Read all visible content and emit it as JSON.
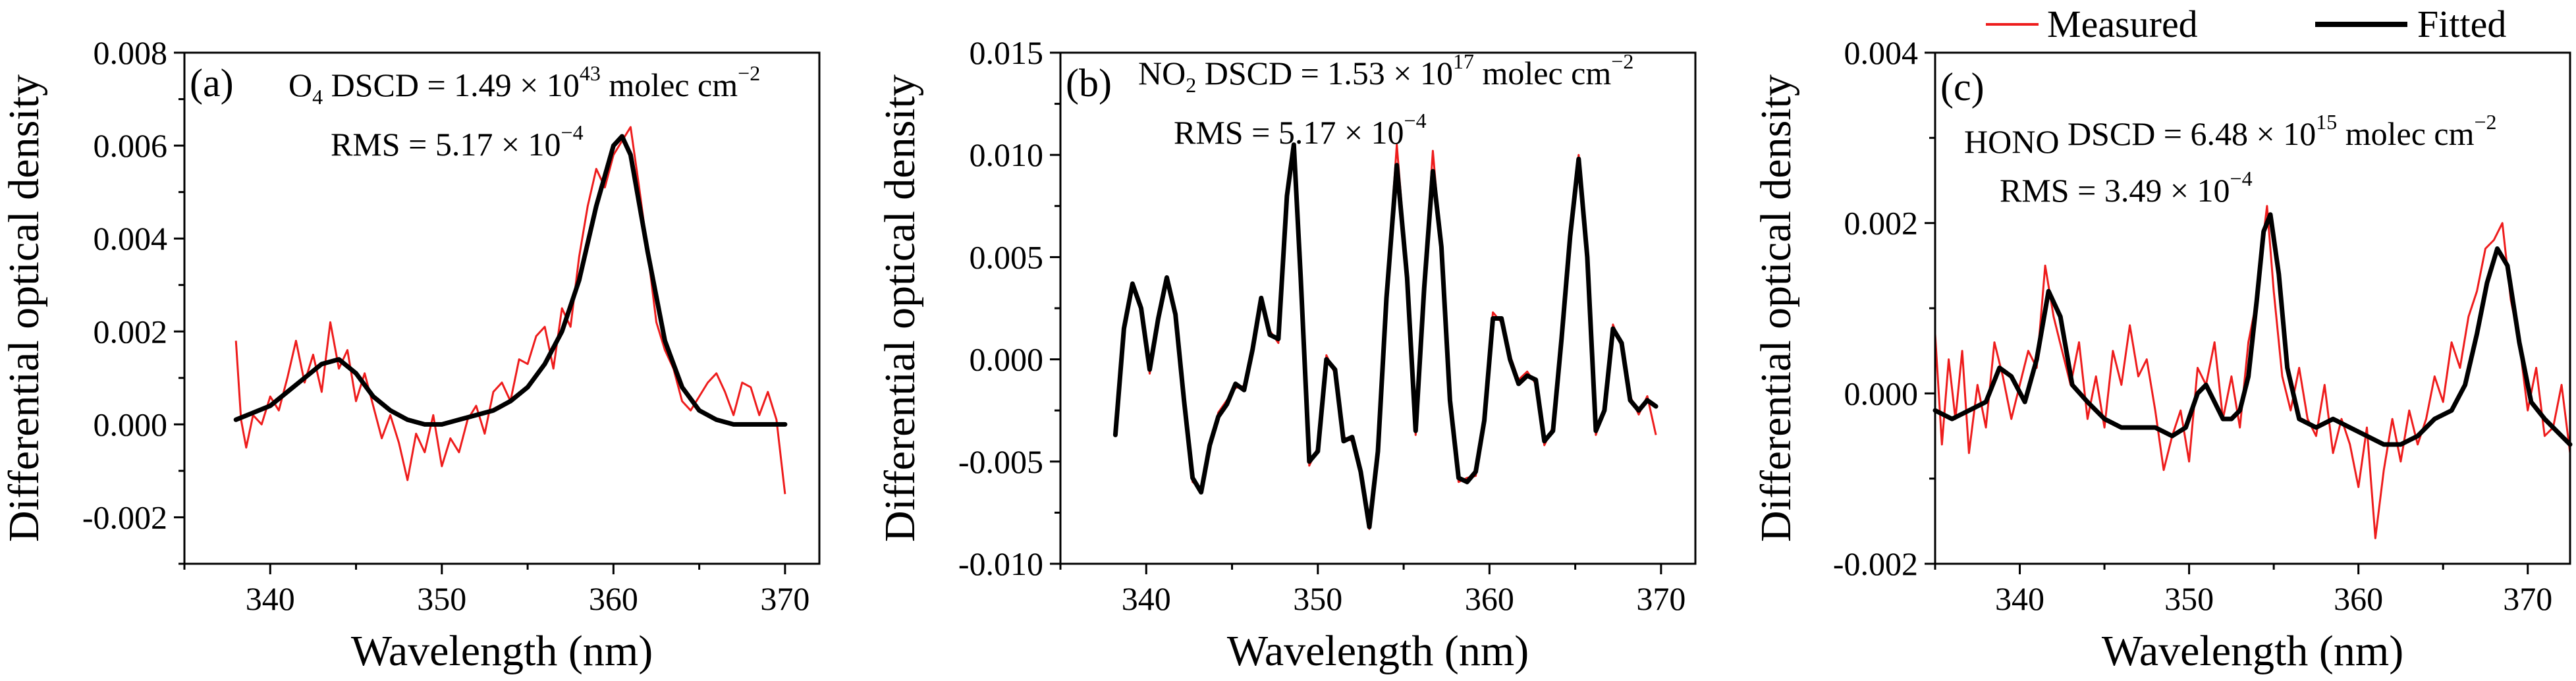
{
  "legend": {
    "measured": "Measured",
    "fitted": "Fitted"
  },
  "chart_data": [
    {
      "type": "line",
      "panel_label": "(a)",
      "xlabel": "Wavelength (nm)",
      "ylabel": "Differential optical density",
      "xlim": [
        335,
        372
      ],
      "ylim": [
        -0.003,
        0.008
      ],
      "xticks": [
        340,
        350,
        360,
        370
      ],
      "yticks": [
        -0.002,
        0.0,
        0.002,
        0.004,
        0.006,
        0.008
      ],
      "ytick_labels": [
        "-0.002",
        "0.000",
        "0.002",
        "0.004",
        "0.006",
        "0.008"
      ],
      "annotation": {
        "dscd_species": "O",
        "dscd_sub": "4",
        "dscd_text": " DSCD = 1.49 × 10",
        "dscd_exp": "43",
        "dscd_unit": " molec cm",
        "dscd_unit_exp": "−2",
        "rms_text": "RMS = 5.17 × 10",
        "rms_exp": "−4"
      },
      "fitted": {
        "name": "Fitted",
        "x": [
          338,
          340,
          341,
          342,
          343,
          344,
          345,
          346,
          347,
          348,
          349,
          350,
          351,
          352,
          353,
          354,
          355,
          356,
          357,
          358,
          359,
          360,
          360.5,
          361,
          362,
          363,
          364,
          365,
          366,
          367,
          368,
          369,
          370
        ],
        "y": [
          0.0001,
          0.0004,
          0.0007,
          0.001,
          0.0013,
          0.0014,
          0.0011,
          0.0006,
          0.0003,
          0.0001,
          0.0,
          0.0,
          0.0001,
          0.0002,
          0.0003,
          0.0005,
          0.0008,
          0.0013,
          0.002,
          0.0031,
          0.0047,
          0.006,
          0.0062,
          0.0058,
          0.0037,
          0.0018,
          0.0008,
          0.0003,
          0.0001,
          0.0,
          0.0,
          0.0,
          0.0
        ]
      },
      "measured": {
        "name": "Measured",
        "x": [
          338,
          338.3,
          338.6,
          339,
          339.5,
          340,
          340.5,
          341,
          341.5,
          342,
          342.5,
          343,
          343.5,
          344,
          344.5,
          345,
          345.5,
          346,
          346.5,
          347,
          347.5,
          348,
          348.5,
          349,
          349.5,
          350,
          350.5,
          351,
          351.5,
          352,
          352.5,
          353,
          353.5,
          354,
          354.5,
          355,
          355.5,
          356,
          356.5,
          357,
          357.5,
          358,
          358.5,
          359,
          359.5,
          360,
          360.5,
          361,
          361.5,
          362,
          362.5,
          363,
          363.5,
          364,
          364.5,
          365,
          365.5,
          366,
          366.5,
          367,
          367.5,
          368,
          368.5,
          369,
          369.5,
          370
        ],
        "y": [
          0.0018,
          0.0001,
          -0.0005,
          0.0002,
          0.0,
          0.0006,
          0.0003,
          0.001,
          0.0018,
          0.0009,
          0.0015,
          0.0007,
          0.0022,
          0.0012,
          0.0016,
          0.0005,
          0.0011,
          0.0004,
          -0.0003,
          0.0002,
          -0.0004,
          -0.0012,
          -0.0002,
          -0.0006,
          0.0002,
          -0.0009,
          -0.0003,
          -0.0006,
          0.0001,
          0.0004,
          -0.0002,
          0.0007,
          0.0009,
          0.0005,
          0.0014,
          0.0013,
          0.0019,
          0.0021,
          0.0012,
          0.0025,
          0.0021,
          0.0036,
          0.0047,
          0.0055,
          0.0051,
          0.0058,
          0.0061,
          0.0064,
          0.0051,
          0.0037,
          0.0022,
          0.0016,
          0.0012,
          0.0005,
          0.0003,
          0.0006,
          0.0009,
          0.0011,
          0.0007,
          0.0002,
          0.0009,
          0.0008,
          0.0002,
          0.0007,
          0.0001,
          -0.0015
        ]
      }
    },
    {
      "type": "line",
      "panel_label": "(b)",
      "xlabel": "Wavelength (nm)",
      "ylabel": "Differential optical density",
      "xlim": [
        335,
        372
      ],
      "ylim": [
        -0.01,
        0.015
      ],
      "xticks": [
        340,
        350,
        360,
        370
      ],
      "yticks": [
        -0.01,
        -0.005,
        0.0,
        0.005,
        0.01,
        0.015
      ],
      "ytick_labels": [
        "-0.010",
        "-0.005",
        "0.000",
        "0.005",
        "0.010",
        "0.015"
      ],
      "annotation": {
        "dscd_species": "NO",
        "dscd_sub": "2",
        "dscd_text": " DSCD = 1.53 × 10",
        "dscd_exp": "17",
        "dscd_unit": " molec cm",
        "dscd_unit_exp": "−2",
        "rms_text": "RMS = 5.17 × 10",
        "rms_exp": "−4"
      },
      "fitted": {
        "name": "Fitted",
        "x": [
          338.2,
          338.7,
          339.2,
          339.7,
          340.2,
          340.7,
          341.2,
          341.7,
          342.2,
          342.7,
          343.2,
          343.7,
          344.2,
          344.7,
          345.2,
          345.7,
          346.2,
          346.7,
          347.2,
          347.7,
          348.2,
          348.6,
          349,
          349.5,
          350,
          350.5,
          351,
          351.5,
          352,
          352.5,
          353,
          353.5,
          354,
          354.6,
          355.2,
          355.7,
          356.2,
          356.7,
          357.2,
          357.7,
          358.2,
          358.7,
          359.2,
          359.7,
          360.2,
          360.7,
          361.2,
          361.7,
          362.2,
          362.7,
          363.2,
          363.7,
          364.2,
          364.7,
          365.2,
          365.7,
          366.2,
          366.7,
          367.2,
          367.7,
          368.2,
          368.7,
          369.2,
          369.7
        ],
        "y": [
          -0.0037,
          0.0015,
          0.0037,
          0.0025,
          -0.0005,
          0.002,
          0.004,
          0.0022,
          -0.002,
          -0.0058,
          -0.0065,
          -0.0042,
          -0.0028,
          -0.0022,
          -0.0012,
          -0.0015,
          0.0005,
          0.003,
          0.0012,
          0.001,
          0.008,
          0.0105,
          0.004,
          -0.005,
          -0.0045,
          0.0,
          -0.0005,
          -0.004,
          -0.0038,
          -0.0055,
          -0.0082,
          -0.0045,
          0.003,
          0.0095,
          0.004,
          -0.0035,
          0.0035,
          0.0092,
          0.0055,
          -0.002,
          -0.0058,
          -0.006,
          -0.0055,
          -0.003,
          0.002,
          0.002,
          0.0,
          -0.0012,
          -0.0008,
          -0.001,
          -0.004,
          -0.0035,
          0.001,
          0.006,
          0.0098,
          0.005,
          -0.0035,
          -0.0025,
          0.0015,
          0.0008,
          -0.002,
          -0.0025,
          -0.002,
          -0.0023
        ]
      },
      "measured": {
        "name": "Measured",
        "x": [
          338.2,
          338.7,
          339.2,
          339.7,
          340.2,
          340.7,
          341.2,
          341.7,
          342.2,
          342.7,
          343.2,
          343.7,
          344.2,
          344.7,
          345.2,
          345.7,
          346.2,
          346.7,
          347.2,
          347.7,
          348.2,
          348.6,
          349,
          349.5,
          350,
          350.5,
          351,
          351.5,
          352,
          352.5,
          353,
          353.5,
          354,
          354.6,
          355.2,
          355.7,
          356.2,
          356.7,
          357.2,
          357.7,
          358.2,
          358.7,
          359.2,
          359.7,
          360.2,
          360.7,
          361.2,
          361.7,
          362.2,
          362.7,
          363.2,
          363.7,
          364.2,
          364.7,
          365.2,
          365.7,
          366.2,
          366.7,
          367.2,
          367.7,
          368.2,
          368.7,
          369.2,
          369.7
        ],
        "y": [
          -0.0033,
          0.0013,
          0.0035,
          0.0027,
          -0.0007,
          0.0022,
          0.0038,
          0.0024,
          -0.0022,
          -0.006,
          -0.0063,
          -0.0044,
          -0.0026,
          -0.002,
          -0.0014,
          -0.0013,
          0.0007,
          0.0028,
          0.0014,
          0.0008,
          0.0082,
          0.0103,
          0.0042,
          -0.0052,
          -0.0043,
          0.0002,
          -0.0007,
          -0.0038,
          -0.004,
          -0.0053,
          -0.0083,
          -0.0043,
          0.0032,
          0.0105,
          0.0042,
          -0.0037,
          0.0037,
          0.0102,
          0.0053,
          -0.0022,
          -0.006,
          -0.0058,
          -0.0057,
          -0.0028,
          0.0023,
          0.0018,
          0.0002,
          -0.001,
          -0.0006,
          -0.0012,
          -0.0042,
          -0.0033,
          0.0012,
          0.0062,
          0.01,
          0.0048,
          -0.0037,
          -0.0023,
          0.0017,
          0.0006,
          -0.0018,
          -0.0027,
          -0.0018,
          -0.0037
        ]
      }
    },
    {
      "type": "line",
      "panel_label": "(c)",
      "xlabel": "Wavelength (nm)",
      "ylabel": "Differential optical density",
      "xlim": [
        335,
        372.5
      ],
      "ylim": [
        -0.002,
        0.004
      ],
      "xticks": [
        340,
        350,
        360,
        370
      ],
      "yticks": [
        -0.002,
        0.0,
        0.002,
        0.004
      ],
      "ytick_labels": [
        "-0.002",
        "0.000",
        "0.002",
        "0.004"
      ],
      "annotation": {
        "dscd_species": "HONO",
        "dscd_sub": "",
        "dscd_text": " DSCD = 6.48 × 10",
        "dscd_exp": "15",
        "dscd_unit": " molec cm",
        "dscd_unit_exp": "−2",
        "rms_text": "RMS = 3.49 × 10",
        "rms_exp": "−4"
      },
      "fitted": {
        "name": "Fitted",
        "x": [
          335,
          336,
          337,
          338,
          338.8,
          339.5,
          340.3,
          341,
          341.7,
          342.4,
          343.1,
          344,
          345,
          346,
          347,
          348,
          349,
          349.8,
          350.5,
          351,
          351.5,
          352,
          352.5,
          353,
          353.5,
          354,
          354.4,
          354.8,
          355.3,
          355.8,
          356.5,
          357.5,
          358.5,
          359.5,
          360.5,
          361.5,
          362.5,
          363.5,
          364.5,
          365.5,
          366.3,
          367,
          367.6,
          368.2,
          368.8,
          369.5,
          370.2,
          371,
          372,
          372.5
        ],
        "y": [
          -0.0002,
          -0.0003,
          -0.0002,
          -0.0001,
          0.0003,
          0.0002,
          -0.0001,
          0.0004,
          0.0012,
          0.0009,
          0.0001,
          -0.0001,
          -0.0003,
          -0.0004,
          -0.0004,
          -0.0004,
          -0.0005,
          -0.0004,
          0.0,
          0.0001,
          -0.0001,
          -0.0003,
          -0.0003,
          -0.0002,
          0.0002,
          0.0011,
          0.0019,
          0.0021,
          0.0014,
          0.0003,
          -0.0003,
          -0.0004,
          -0.0003,
          -0.0004,
          -0.0005,
          -0.0006,
          -0.0006,
          -0.0005,
          -0.0003,
          -0.0002,
          0.0001,
          0.0007,
          0.0013,
          0.0017,
          0.0015,
          0.0006,
          -0.0001,
          -0.0003,
          -0.0005,
          -0.0006
        ]
      },
      "measured": {
        "name": "Measured",
        "x": [
          335,
          335.4,
          335.8,
          336.2,
          336.6,
          337,
          337.5,
          338,
          338.5,
          339,
          339.5,
          340,
          340.5,
          341,
          341.5,
          342,
          342.5,
          343,
          343.5,
          344,
          344.5,
          345,
          345.5,
          346,
          346.5,
          347,
          347.5,
          348,
          348.5,
          349,
          349.5,
          350,
          350.5,
          351,
          351.5,
          352,
          352.5,
          353,
          353.5,
          354,
          354.3,
          354.6,
          355,
          355.5,
          356,
          356.5,
          357,
          357.5,
          358,
          358.5,
          359,
          359.5,
          360,
          360.5,
          361,
          361.5,
          362,
          362.5,
          363,
          363.5,
          364,
          364.5,
          365,
          365.5,
          366,
          366.5,
          367,
          367.5,
          368,
          368.5,
          369,
          369.5,
          370,
          370.5,
          371,
          371.5,
          372,
          372.5
        ],
        "y": [
          0.0007,
          -0.0006,
          0.0004,
          -0.0003,
          0.0005,
          -0.0007,
          0.0001,
          -0.0004,
          0.0006,
          0.0002,
          -0.0003,
          0.0001,
          0.0005,
          0.0003,
          0.0015,
          0.0009,
          0.0005,
          0.0001,
          0.0006,
          -0.0003,
          0.0002,
          -0.0004,
          0.0005,
          0.0001,
          0.0008,
          0.0002,
          0.0004,
          -0.0002,
          -0.0009,
          -0.0005,
          -0.0002,
          -0.0008,
          0.0003,
          0.0001,
          0.0006,
          -0.0003,
          0.0002,
          -0.0004,
          0.0006,
          0.0011,
          0.0017,
          0.0022,
          0.0012,
          0.0002,
          -0.0002,
          0.0003,
          -0.0003,
          -0.0005,
          0.0001,
          -0.0007,
          -0.0003,
          -0.0006,
          -0.0011,
          -0.0004,
          -0.0017,
          -0.0009,
          -0.0003,
          -0.0008,
          -0.0002,
          -0.0006,
          -0.0003,
          0.0002,
          -0.0001,
          0.0006,
          0.0003,
          0.0009,
          0.0012,
          0.0017,
          0.0018,
          0.002,
          0.0011,
          0.0006,
          -0.0002,
          0.0003,
          -0.0005,
          -0.0004,
          0.0001,
          -0.0007
        ]
      }
    }
  ]
}
